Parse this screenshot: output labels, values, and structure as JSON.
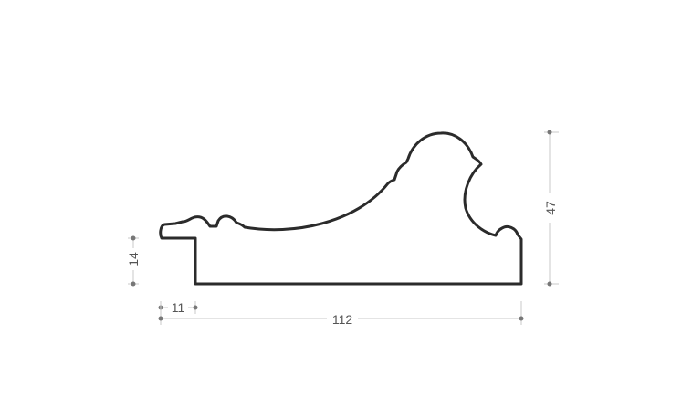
{
  "diagram": {
    "dimensions": {
      "total_width": "112",
      "total_height": "47",
      "rebate_height": "14",
      "rebate_width": "11"
    },
    "colors": {
      "outline": "#2b2b2b",
      "dimension_line": "#c8c8c8",
      "dimension_dot": "#777777",
      "dimension_text": "#555555"
    }
  }
}
